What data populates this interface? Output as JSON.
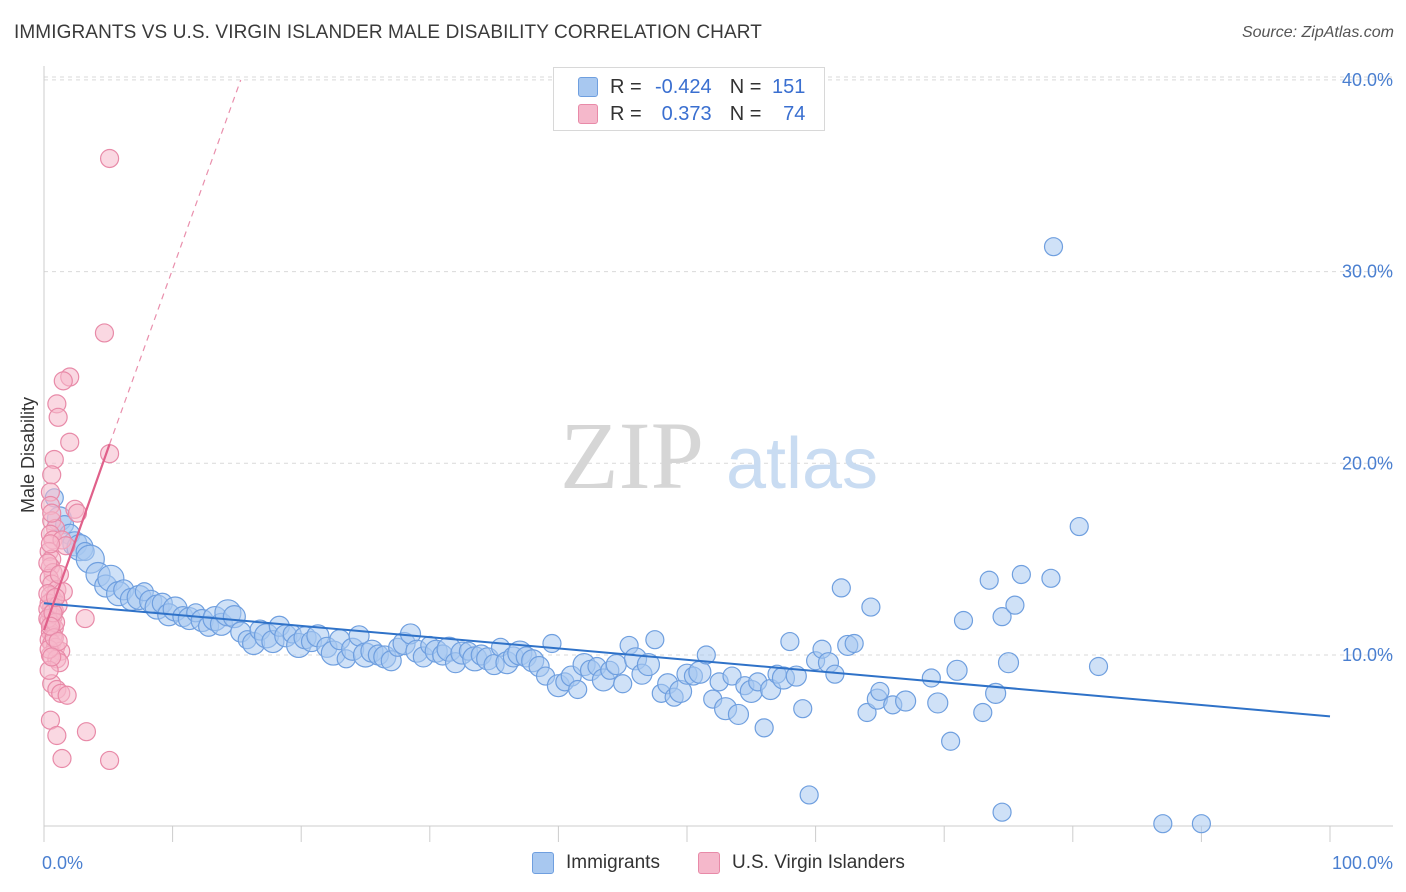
{
  "title": "IMMIGRANTS VS U.S. VIRGIN ISLANDER MALE DISABILITY CORRELATION CHART",
  "source": "Source: ZipAtlas.com",
  "watermark": {
    "zip": "ZIP",
    "atlas": "atlas"
  },
  "legend": {
    "r_label": "R =",
    "n_label": "N =",
    "rows": [
      {
        "name": "Immigrants",
        "r": "-0.424",
        "n": "151",
        "color": "#a8c8f0"
      },
      {
        "name": "U.S. Virgin Islanders",
        "r": "0.373",
        "n": "74",
        "color": "#f5b8cb"
      }
    ]
  },
  "colors": {
    "blue_fill": "#a8c8f0",
    "blue_stroke": "#6f9fdf",
    "blue_line": "#2f72c8",
    "pink_fill": "#f5b8cb",
    "pink_stroke": "#e88aa8",
    "pink_line": "#e0608a",
    "grid": "#d9d9d9",
    "tick_text": "#4a7fd0"
  },
  "chart_data": {
    "type": "scatter",
    "title": "IMMIGRANTS VS U.S. VIRGIN ISLANDER MALE DISABILITY CORRELATION CHART",
    "xlabel": "",
    "ylabel": "Male Disability",
    "x_unit": "percent",
    "xlim": [
      0,
      100
    ],
    "ylim": [
      0,
      41
    ],
    "x_tick_labels": [
      "0.0%",
      "100.0%"
    ],
    "y_ticks": [
      10,
      20,
      30,
      40
    ],
    "y_tick_labels": [
      "10.0%",
      "20.0%",
      "30.0%",
      "40.0%"
    ],
    "grid": true,
    "legend_position": "bottom",
    "series": [
      {
        "name": "Immigrants",
        "r": -0.424,
        "n": 151,
        "trend": {
          "x0": 0,
          "y0": 12.7,
          "x1": 100,
          "y1": 6.8,
          "style": "solid"
        },
        "points": [
          [
            0.8,
            18.2,
            9
          ],
          [
            1.2,
            17.1,
            12
          ],
          [
            1.6,
            16.8,
            9
          ],
          [
            2.0,
            16.3,
            10
          ],
          [
            2.4,
            15.8,
            12
          ],
          [
            2.8,
            15.6,
            13
          ],
          [
            3.2,
            15.4,
            9
          ],
          [
            3.6,
            15.0,
            14
          ],
          [
            4.2,
            14.2,
            12
          ],
          [
            4.8,
            13.6,
            11
          ],
          [
            5.2,
            14.0,
            13
          ],
          [
            5.8,
            13.2,
            12
          ],
          [
            6.2,
            13.4,
            10
          ],
          [
            6.8,
            12.9,
            11
          ],
          [
            7.4,
            13.0,
            12
          ],
          [
            7.8,
            13.3,
            9
          ],
          [
            8.3,
            12.8,
            11
          ],
          [
            8.8,
            12.5,
            12
          ],
          [
            9.2,
            12.7,
            10
          ],
          [
            9.7,
            12.1,
            11
          ],
          [
            10.2,
            12.4,
            12
          ],
          [
            10.8,
            12.0,
            10
          ],
          [
            11.3,
            11.9,
            11
          ],
          [
            11.8,
            12.2,
            9
          ],
          [
            12.3,
            11.8,
            11
          ],
          [
            12.8,
            11.5,
            10
          ],
          [
            13.3,
            11.9,
            12
          ],
          [
            13.8,
            11.6,
            11
          ],
          [
            14.3,
            12.2,
            13
          ],
          [
            14.8,
            12.0,
            11
          ],
          [
            15.3,
            11.2,
            10
          ],
          [
            15.8,
            10.8,
            9
          ],
          [
            16.3,
            10.6,
            11
          ],
          [
            16.8,
            11.3,
            10
          ],
          [
            17.3,
            11.0,
            12
          ],
          [
            17.8,
            10.7,
            11
          ],
          [
            18.3,
            11.5,
            10
          ],
          [
            18.8,
            11.0,
            11
          ],
          [
            19.3,
            11.1,
            9
          ],
          [
            19.8,
            10.5,
            12
          ],
          [
            20.3,
            10.9,
            11
          ],
          [
            20.8,
            10.7,
            10
          ],
          [
            21.3,
            11.0,
            11
          ],
          [
            22.0,
            10.4,
            10
          ],
          [
            22.5,
            10.1,
            12
          ],
          [
            23.0,
            10.8,
            10
          ],
          [
            23.5,
            9.8,
            9
          ],
          [
            24.0,
            10.3,
            11
          ],
          [
            24.5,
            11.0,
            10
          ],
          [
            25.0,
            10.0,
            12
          ],
          [
            25.5,
            10.2,
            11
          ],
          [
            26.0,
            10.0,
            10
          ],
          [
            26.5,
            9.9,
            11
          ],
          [
            27.0,
            9.7,
            10
          ],
          [
            27.5,
            10.4,
            9
          ],
          [
            28.0,
            10.6,
            11
          ],
          [
            28.5,
            11.1,
            10
          ],
          [
            29.0,
            10.2,
            11
          ],
          [
            29.5,
            9.9,
            10
          ],
          [
            30.0,
            10.5,
            9
          ],
          [
            30.5,
            10.2,
            11
          ],
          [
            31.0,
            10.0,
            10
          ],
          [
            31.5,
            10.3,
            12
          ],
          [
            32.0,
            9.6,
            10
          ],
          [
            32.5,
            10.1,
            11
          ],
          [
            33.0,
            10.2,
            9
          ],
          [
            33.5,
            9.8,
            12
          ],
          [
            34.0,
            10.0,
            10
          ],
          [
            34.5,
            9.8,
            11
          ],
          [
            35.0,
            9.5,
            10
          ],
          [
            35.5,
            10.4,
            9
          ],
          [
            36.0,
            9.6,
            11
          ],
          [
            36.5,
            9.9,
            10
          ],
          [
            37.0,
            10.1,
            12
          ],
          [
            37.5,
            9.9,
            10
          ],
          [
            38.0,
            9.7,
            11
          ],
          [
            38.5,
            9.4,
            10
          ],
          [
            39.0,
            8.9,
            9
          ],
          [
            39.5,
            10.6,
            9
          ],
          [
            40.0,
            8.4,
            11
          ],
          [
            40.5,
            8.6,
            9
          ],
          [
            41.0,
            8.9,
            10
          ],
          [
            41.5,
            8.2,
            9
          ],
          [
            42.0,
            9.5,
            11
          ],
          [
            42.5,
            9.2,
            10
          ],
          [
            43.0,
            9.4,
            9
          ],
          [
            43.5,
            8.7,
            11
          ],
          [
            44.0,
            9.2,
            9
          ],
          [
            44.5,
            9.5,
            10
          ],
          [
            45.0,
            8.5,
            9
          ],
          [
            45.5,
            10.5,
            9
          ],
          [
            46.0,
            9.8,
            11
          ],
          [
            46.5,
            9.0,
            10
          ],
          [
            47.0,
            9.5,
            11
          ],
          [
            47.5,
            10.8,
            9
          ],
          [
            48.0,
            8.0,
            9
          ],
          [
            48.5,
            8.5,
            10
          ],
          [
            49.0,
            7.8,
            9
          ],
          [
            49.5,
            8.1,
            11
          ],
          [
            50.0,
            9.0,
            10
          ],
          [
            50.5,
            8.9,
            9
          ],
          [
            51.0,
            9.1,
            11
          ],
          [
            51.5,
            10.0,
            9
          ],
          [
            52.0,
            7.7,
            9
          ],
          [
            52.5,
            8.6,
            9
          ],
          [
            53.0,
            7.2,
            11
          ],
          [
            53.5,
            8.9,
            9
          ],
          [
            54.0,
            6.9,
            10
          ],
          [
            54.5,
            8.4,
            9
          ],
          [
            55.0,
            8.1,
            11
          ],
          [
            55.5,
            8.6,
            9
          ],
          [
            56.0,
            6.2,
            9
          ],
          [
            56.5,
            8.2,
            10
          ],
          [
            57.0,
            9.0,
            9
          ],
          [
            57.5,
            8.8,
            11
          ],
          [
            58.0,
            10.7,
            9
          ],
          [
            58.5,
            8.9,
            10
          ],
          [
            59.0,
            7.2,
            9
          ],
          [
            59.5,
            2.7,
            9
          ],
          [
            60.0,
            9.7,
            9
          ],
          [
            60.5,
            10.3,
            9
          ],
          [
            61.0,
            9.6,
            10
          ],
          [
            61.5,
            9.0,
            9
          ],
          [
            62.0,
            13.5,
            9
          ],
          [
            62.5,
            10.5,
            10
          ],
          [
            63.0,
            10.6,
            9
          ],
          [
            64.0,
            7.0,
            9
          ],
          [
            64.3,
            12.5,
            9
          ],
          [
            64.8,
            7.7,
            10
          ],
          [
            65.0,
            8.1,
            9
          ],
          [
            66.0,
            7.4,
            9
          ],
          [
            67.0,
            7.6,
            10
          ],
          [
            69.0,
            8.8,
            9
          ],
          [
            69.5,
            7.5,
            10
          ],
          [
            70.5,
            5.5,
            9
          ],
          [
            71.0,
            9.2,
            10
          ],
          [
            71.5,
            11.8,
            9
          ],
          [
            73.0,
            7.0,
            9
          ],
          [
            73.5,
            13.9,
            9
          ],
          [
            74.0,
            8.0,
            10
          ],
          [
            74.5,
            12.0,
            9
          ],
          [
            75.0,
            9.6,
            10
          ],
          [
            75.5,
            12.6,
            9
          ],
          [
            76.0,
            14.2,
            9
          ],
          [
            78.3,
            14.0,
            9
          ],
          [
            78.5,
            31.3,
            9
          ],
          [
            80.5,
            16.7,
            9
          ],
          [
            74.5,
            1.8,
            9
          ],
          [
            87.0,
            1.2,
            9
          ],
          [
            90.0,
            1.2,
            9
          ],
          [
            82.0,
            9.4,
            9
          ]
        ]
      },
      {
        "name": "U.S. Virgin Islanders",
        "r": 0.373,
        "n": 74,
        "trend": {
          "x0": 0,
          "y0": 11.3,
          "x1": 5.1,
          "y1": 21.0,
          "style": "solid",
          "extend_to": {
            "x": 15.3,
            "y": 40.0,
            "style": "dashed"
          }
        },
        "points": [
          [
            5.1,
            35.9,
            9
          ],
          [
            4.7,
            26.8,
            9
          ],
          [
            2.0,
            24.5,
            9
          ],
          [
            1.5,
            24.3,
            9
          ],
          [
            1.0,
            23.1,
            9
          ],
          [
            1.1,
            22.4,
            9
          ],
          [
            2.0,
            21.1,
            9
          ],
          [
            5.1,
            20.5,
            9
          ],
          [
            0.8,
            20.2,
            9
          ],
          [
            0.6,
            19.4,
            9
          ],
          [
            0.5,
            18.5,
            9
          ],
          [
            0.5,
            17.8,
            9
          ],
          [
            2.4,
            17.6,
            9
          ],
          [
            2.6,
            17.4,
            9
          ],
          [
            0.6,
            17.0,
            9
          ],
          [
            0.9,
            16.6,
            9
          ],
          [
            0.5,
            16.3,
            9
          ],
          [
            0.7,
            16.0,
            9
          ],
          [
            1.4,
            16.0,
            9
          ],
          [
            1.7,
            15.7,
            9
          ],
          [
            0.4,
            15.4,
            9
          ],
          [
            0.6,
            15.0,
            9
          ],
          [
            0.5,
            14.6,
            9
          ],
          [
            0.7,
            14.3,
            9
          ],
          [
            0.4,
            14.0,
            9
          ],
          [
            0.6,
            13.7,
            9
          ],
          [
            1.0,
            13.4,
            9
          ],
          [
            0.5,
            13.1,
            9
          ],
          [
            0.7,
            12.9,
            9
          ],
          [
            0.4,
            12.7,
            9
          ],
          [
            0.6,
            12.5,
            9
          ],
          [
            0.8,
            12.3,
            9
          ],
          [
            0.5,
            12.1,
            9
          ],
          [
            0.7,
            12.0,
            9
          ],
          [
            3.2,
            11.9,
            9
          ],
          [
            0.4,
            11.8,
            9
          ],
          [
            0.6,
            11.6,
            9
          ],
          [
            0.8,
            11.4,
            9
          ],
          [
            0.5,
            11.2,
            9
          ],
          [
            0.7,
            11.0,
            9
          ],
          [
            0.4,
            10.8,
            9
          ],
          [
            0.6,
            10.6,
            9
          ],
          [
            0.9,
            10.4,
            9
          ],
          [
            1.3,
            10.2,
            9
          ],
          [
            0.5,
            10.0,
            9
          ],
          [
            1.0,
            9.8,
            9
          ],
          [
            1.2,
            9.6,
            9
          ],
          [
            0.6,
            8.5,
            9
          ],
          [
            1.0,
            8.2,
            9
          ],
          [
            1.3,
            8.0,
            9
          ],
          [
            1.8,
            7.9,
            9
          ],
          [
            0.5,
            6.6,
            9
          ],
          [
            1.0,
            5.8,
            9
          ],
          [
            3.3,
            6.0,
            9
          ],
          [
            1.4,
            4.6,
            9
          ],
          [
            5.1,
            4.5,
            9
          ],
          [
            0.3,
            12.4,
            9
          ],
          [
            0.3,
            11.9,
            9
          ],
          [
            0.3,
            13.2,
            9
          ],
          [
            0.3,
            14.8,
            9
          ],
          [
            0.4,
            10.3,
            9
          ],
          [
            1.1,
            12.6,
            9
          ],
          [
            0.9,
            11.7,
            9
          ],
          [
            1.5,
            13.3,
            9
          ],
          [
            0.4,
            9.2,
            9
          ],
          [
            0.8,
            10.9,
            9
          ],
          [
            0.5,
            15.8,
            9
          ],
          [
            0.6,
            17.4,
            9
          ],
          [
            1.2,
            14.2,
            9
          ],
          [
            0.7,
            12.2,
            9
          ],
          [
            0.9,
            13.0,
            9
          ],
          [
            0.5,
            11.5,
            9
          ],
          [
            1.1,
            10.7,
            9
          ],
          [
            0.6,
            9.9,
            9
          ]
        ]
      }
    ]
  }
}
